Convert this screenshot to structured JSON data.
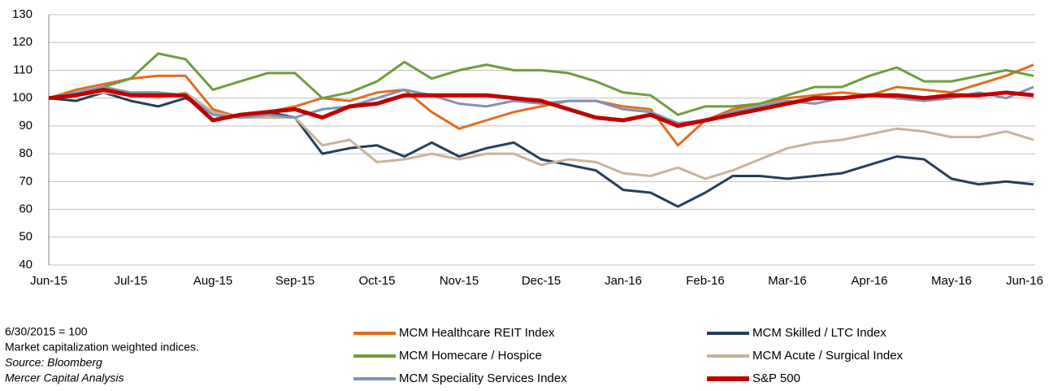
{
  "chart_data": {
    "type": "line",
    "categories": [
      "Jun-15",
      null,
      null,
      "Jul-15",
      null,
      null,
      "Aug-15",
      null,
      null,
      "Sep-15",
      null,
      null,
      "Oct-15",
      null,
      null,
      "Nov-15",
      null,
      null,
      "Dec-15",
      null,
      null,
      "Jan-16",
      null,
      null,
      "Feb-16",
      null,
      null,
      "Mar-16",
      null,
      null,
      "Apr-16",
      null,
      null,
      "May-16",
      null,
      null,
      "Jun-16"
    ],
    "series": [
      {
        "name": "MCM Healthcare REIT Index",
        "color": "#e36c1f",
        "values": [
          100,
          103,
          105,
          107,
          108,
          108,
          96,
          93,
          95,
          97,
          100,
          99,
          102,
          103,
          95,
          89,
          92,
          95,
          97,
          99,
          99,
          97,
          96,
          83,
          92,
          96,
          98,
          100,
          101,
          102,
          101,
          104,
          103,
          102,
          105,
          108,
          112
        ]
      },
      {
        "name": "MCM Skilled / LTC Index",
        "color": "#243f5c",
        "values": [
          100,
          99,
          102,
          99,
          97,
          100,
          95,
          93,
          95,
          93,
          80,
          82,
          83,
          79,
          84,
          79,
          82,
          84,
          78,
          76,
          74,
          67,
          66,
          61,
          66,
          72,
          72,
          71,
          72,
          73,
          76,
          79,
          78,
          71,
          69,
          70,
          69
        ]
      },
      {
        "name": "MCM Homecare / Hospice",
        "color": "#6e9d3d",
        "values": [
          100,
          101,
          104,
          107,
          116,
          114,
          103,
          106,
          109,
          109,
          100,
          102,
          106,
          113,
          107,
          110,
          112,
          110,
          110,
          109,
          106,
          102,
          101,
          94,
          97,
          97,
          98,
          101,
          104,
          104,
          108,
          111,
          106,
          106,
          108,
          110,
          108
        ]
      },
      {
        "name": "MCM Acute / Surgical  Index",
        "color": "#c8b49a",
        "values": [
          100,
          101,
          102,
          101,
          100,
          102,
          95,
          93,
          93,
          93,
          83,
          85,
          77,
          78,
          80,
          78,
          80,
          80,
          76,
          78,
          77,
          73,
          72,
          75,
          71,
          74,
          78,
          82,
          84,
          85,
          87,
          89,
          88,
          86,
          86,
          88,
          85
        ]
      },
      {
        "name": "MCM Speciality Services Index",
        "color": "#7f93b5",
        "values": [
          100,
          102,
          104,
          102,
          102,
          101,
          94,
          93,
          94,
          93,
          96,
          97,
          100,
          103,
          101,
          98,
          97,
          99,
          98,
          99,
          99,
          96,
          95,
          91,
          92,
          95,
          97,
          99,
          98,
          100,
          101,
          100,
          99,
          100,
          102,
          100,
          104
        ]
      },
      {
        "name": "S&P 500",
        "color": "#c00000",
        "values": [
          100,
          101,
          103,
          101,
          101,
          101,
          92,
          94,
          95,
          96,
          93,
          97,
          98,
          101,
          101,
          101,
          101,
          100,
          99,
          96,
          93,
          92,
          94,
          90,
          92,
          94,
          96,
          98,
          100,
          100,
          101,
          101,
          100,
          101,
          101,
          102,
          101
        ]
      }
    ],
    "ylim": [
      40,
      130
    ],
    "yticks": [
      40,
      50,
      60,
      70,
      80,
      90,
      100,
      110,
      120,
      130
    ],
    "grid": true,
    "notes": [
      "6/30/2015 = 100",
      "Market capitalization weighted indices.",
      "Source: Bloomberg",
      "Mercer Capital Analysis"
    ]
  }
}
